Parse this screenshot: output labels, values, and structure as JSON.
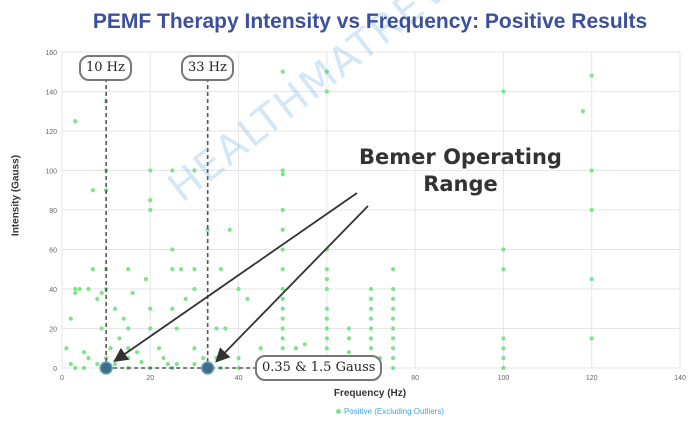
{
  "chart_data": {
    "type": "scatter",
    "title": "PEMF Therapy Intensity vs Frequency: Positive Results",
    "xlabel": "Frequency (Hz)",
    "ylabel": "Intensity (Gauss)",
    "xlim": [
      0,
      140
    ],
    "ylim": [
      0,
      160
    ],
    "x_ticks": [
      0,
      20,
      40,
      60,
      80,
      100,
      120,
      140
    ],
    "y_ticks": [
      0,
      20,
      40,
      60,
      80,
      100,
      120,
      140,
      160
    ],
    "grid": true,
    "legend_position": "bottom",
    "series": [
      {
        "name": "Positive (Excluding Outliers)",
        "color": "#7ee38c",
        "points": [
          [
            1,
            10
          ],
          [
            2,
            2
          ],
          [
            2,
            25
          ],
          [
            3,
            40
          ],
          [
            3,
            38
          ],
          [
            3,
            0
          ],
          [
            3,
            125
          ],
          [
            4,
            40
          ],
          [
            5,
            8
          ],
          [
            5,
            0
          ],
          [
            6,
            5
          ],
          [
            6,
            40
          ],
          [
            7,
            50
          ],
          [
            7,
            90
          ],
          [
            8,
            2
          ],
          [
            8,
            35
          ],
          [
            9,
            20
          ],
          [
            9,
            38
          ],
          [
            10,
            0
          ],
          [
            10,
            5
          ],
          [
            10,
            135
          ],
          [
            10,
            100
          ],
          [
            10,
            90
          ],
          [
            10,
            50
          ],
          [
            10,
            40
          ],
          [
            11,
            10
          ],
          [
            12,
            2
          ],
          [
            12,
            30
          ],
          [
            13,
            15
          ],
          [
            14,
            25
          ],
          [
            15,
            0
          ],
          [
            15,
            5
          ],
          [
            15,
            50
          ],
          [
            15,
            20
          ],
          [
            15,
            10
          ],
          [
            16,
            38
          ],
          [
            17,
            8
          ],
          [
            18,
            3
          ],
          [
            19,
            45
          ],
          [
            20,
            0
          ],
          [
            20,
            20
          ],
          [
            20,
            30
          ],
          [
            20,
            80
          ],
          [
            20,
            85
          ],
          [
            20,
            100
          ],
          [
            22,
            10
          ],
          [
            23,
            5
          ],
          [
            24,
            2
          ],
          [
            25,
            30
          ],
          [
            25,
            50
          ],
          [
            25,
            60
          ],
          [
            25,
            100
          ],
          [
            25,
            0
          ],
          [
            26,
            2
          ],
          [
            26,
            20
          ],
          [
            27,
            50
          ],
          [
            28,
            35
          ],
          [
            30,
            2
          ],
          [
            30,
            10
          ],
          [
            30,
            40
          ],
          [
            30,
            50
          ],
          [
            30,
            100
          ],
          [
            32,
            5
          ],
          [
            33,
            70
          ],
          [
            34,
            0
          ],
          [
            35,
            5
          ],
          [
            35,
            20
          ],
          [
            36,
            50
          ],
          [
            36,
            0
          ],
          [
            37,
            20
          ],
          [
            38,
            70
          ],
          [
            40,
            0
          ],
          [
            40,
            5
          ],
          [
            40,
            40
          ],
          [
            42,
            35
          ],
          [
            45,
            10
          ],
          [
            46,
            0
          ],
          [
            46,
            5
          ],
          [
            48,
            2
          ],
          [
            50,
            0
          ],
          [
            50,
            5
          ],
          [
            50,
            10
          ],
          [
            50,
            15
          ],
          [
            50,
            20
          ],
          [
            50,
            25
          ],
          [
            50,
            30
          ],
          [
            50,
            35
          ],
          [
            50,
            40
          ],
          [
            50,
            50
          ],
          [
            50,
            60
          ],
          [
            50,
            70
          ],
          [
            50,
            80
          ],
          [
            50,
            98
          ],
          [
            50,
            100
          ],
          [
            50,
            150
          ],
          [
            52,
            3
          ],
          [
            53,
            10
          ],
          [
            55,
            5
          ],
          [
            55,
            12
          ],
          [
            55,
            0
          ],
          [
            57,
            1
          ],
          [
            58,
            2
          ],
          [
            60,
            0
          ],
          [
            60,
            10
          ],
          [
            60,
            15
          ],
          [
            60,
            20
          ],
          [
            60,
            25
          ],
          [
            60,
            30
          ],
          [
            60,
            40
          ],
          [
            60,
            45
          ],
          [
            60,
            50
          ],
          [
            60,
            60
          ],
          [
            60,
            140
          ],
          [
            60,
            150
          ],
          [
            65,
            8
          ],
          [
            65,
            2
          ],
          [
            65,
            15
          ],
          [
            65,
            20
          ],
          [
            67,
            3
          ],
          [
            70,
            10
          ],
          [
            70,
            15
          ],
          [
            70,
            20
          ],
          [
            70,
            25
          ],
          [
            70,
            30
          ],
          [
            70,
            35
          ],
          [
            70,
            40
          ],
          [
            70,
            3
          ],
          [
            72,
            5
          ],
          [
            75,
            0
          ],
          [
            75,
            5
          ],
          [
            75,
            10
          ],
          [
            75,
            15
          ],
          [
            75,
            20
          ],
          [
            75,
            25
          ],
          [
            75,
            30
          ],
          [
            75,
            35
          ],
          [
            75,
            40
          ],
          [
            75,
            50
          ],
          [
            100,
            0
          ],
          [
            100,
            5
          ],
          [
            100,
            10
          ],
          [
            100,
            15
          ],
          [
            100,
            50
          ],
          [
            100,
            60
          ],
          [
            100,
            140
          ],
          [
            120,
            15
          ],
          [
            120,
            45
          ],
          [
            120,
            80
          ],
          [
            120,
            100
          ],
          [
            120,
            148
          ],
          [
            118,
            130
          ]
        ]
      }
    ],
    "guide_lines": [
      {
        "x": 10,
        "label": "10 Hz"
      },
      {
        "x": 33,
        "label": "33 Hz"
      }
    ],
    "highlight_points": [
      [
        10,
        0
      ],
      [
        33,
        0
      ]
    ],
    "range_label": "0.35 & 1.5 Gauss",
    "annotation": "Bemer Operating Range",
    "watermark": "HEALTHMATREVIEW.COM"
  }
}
